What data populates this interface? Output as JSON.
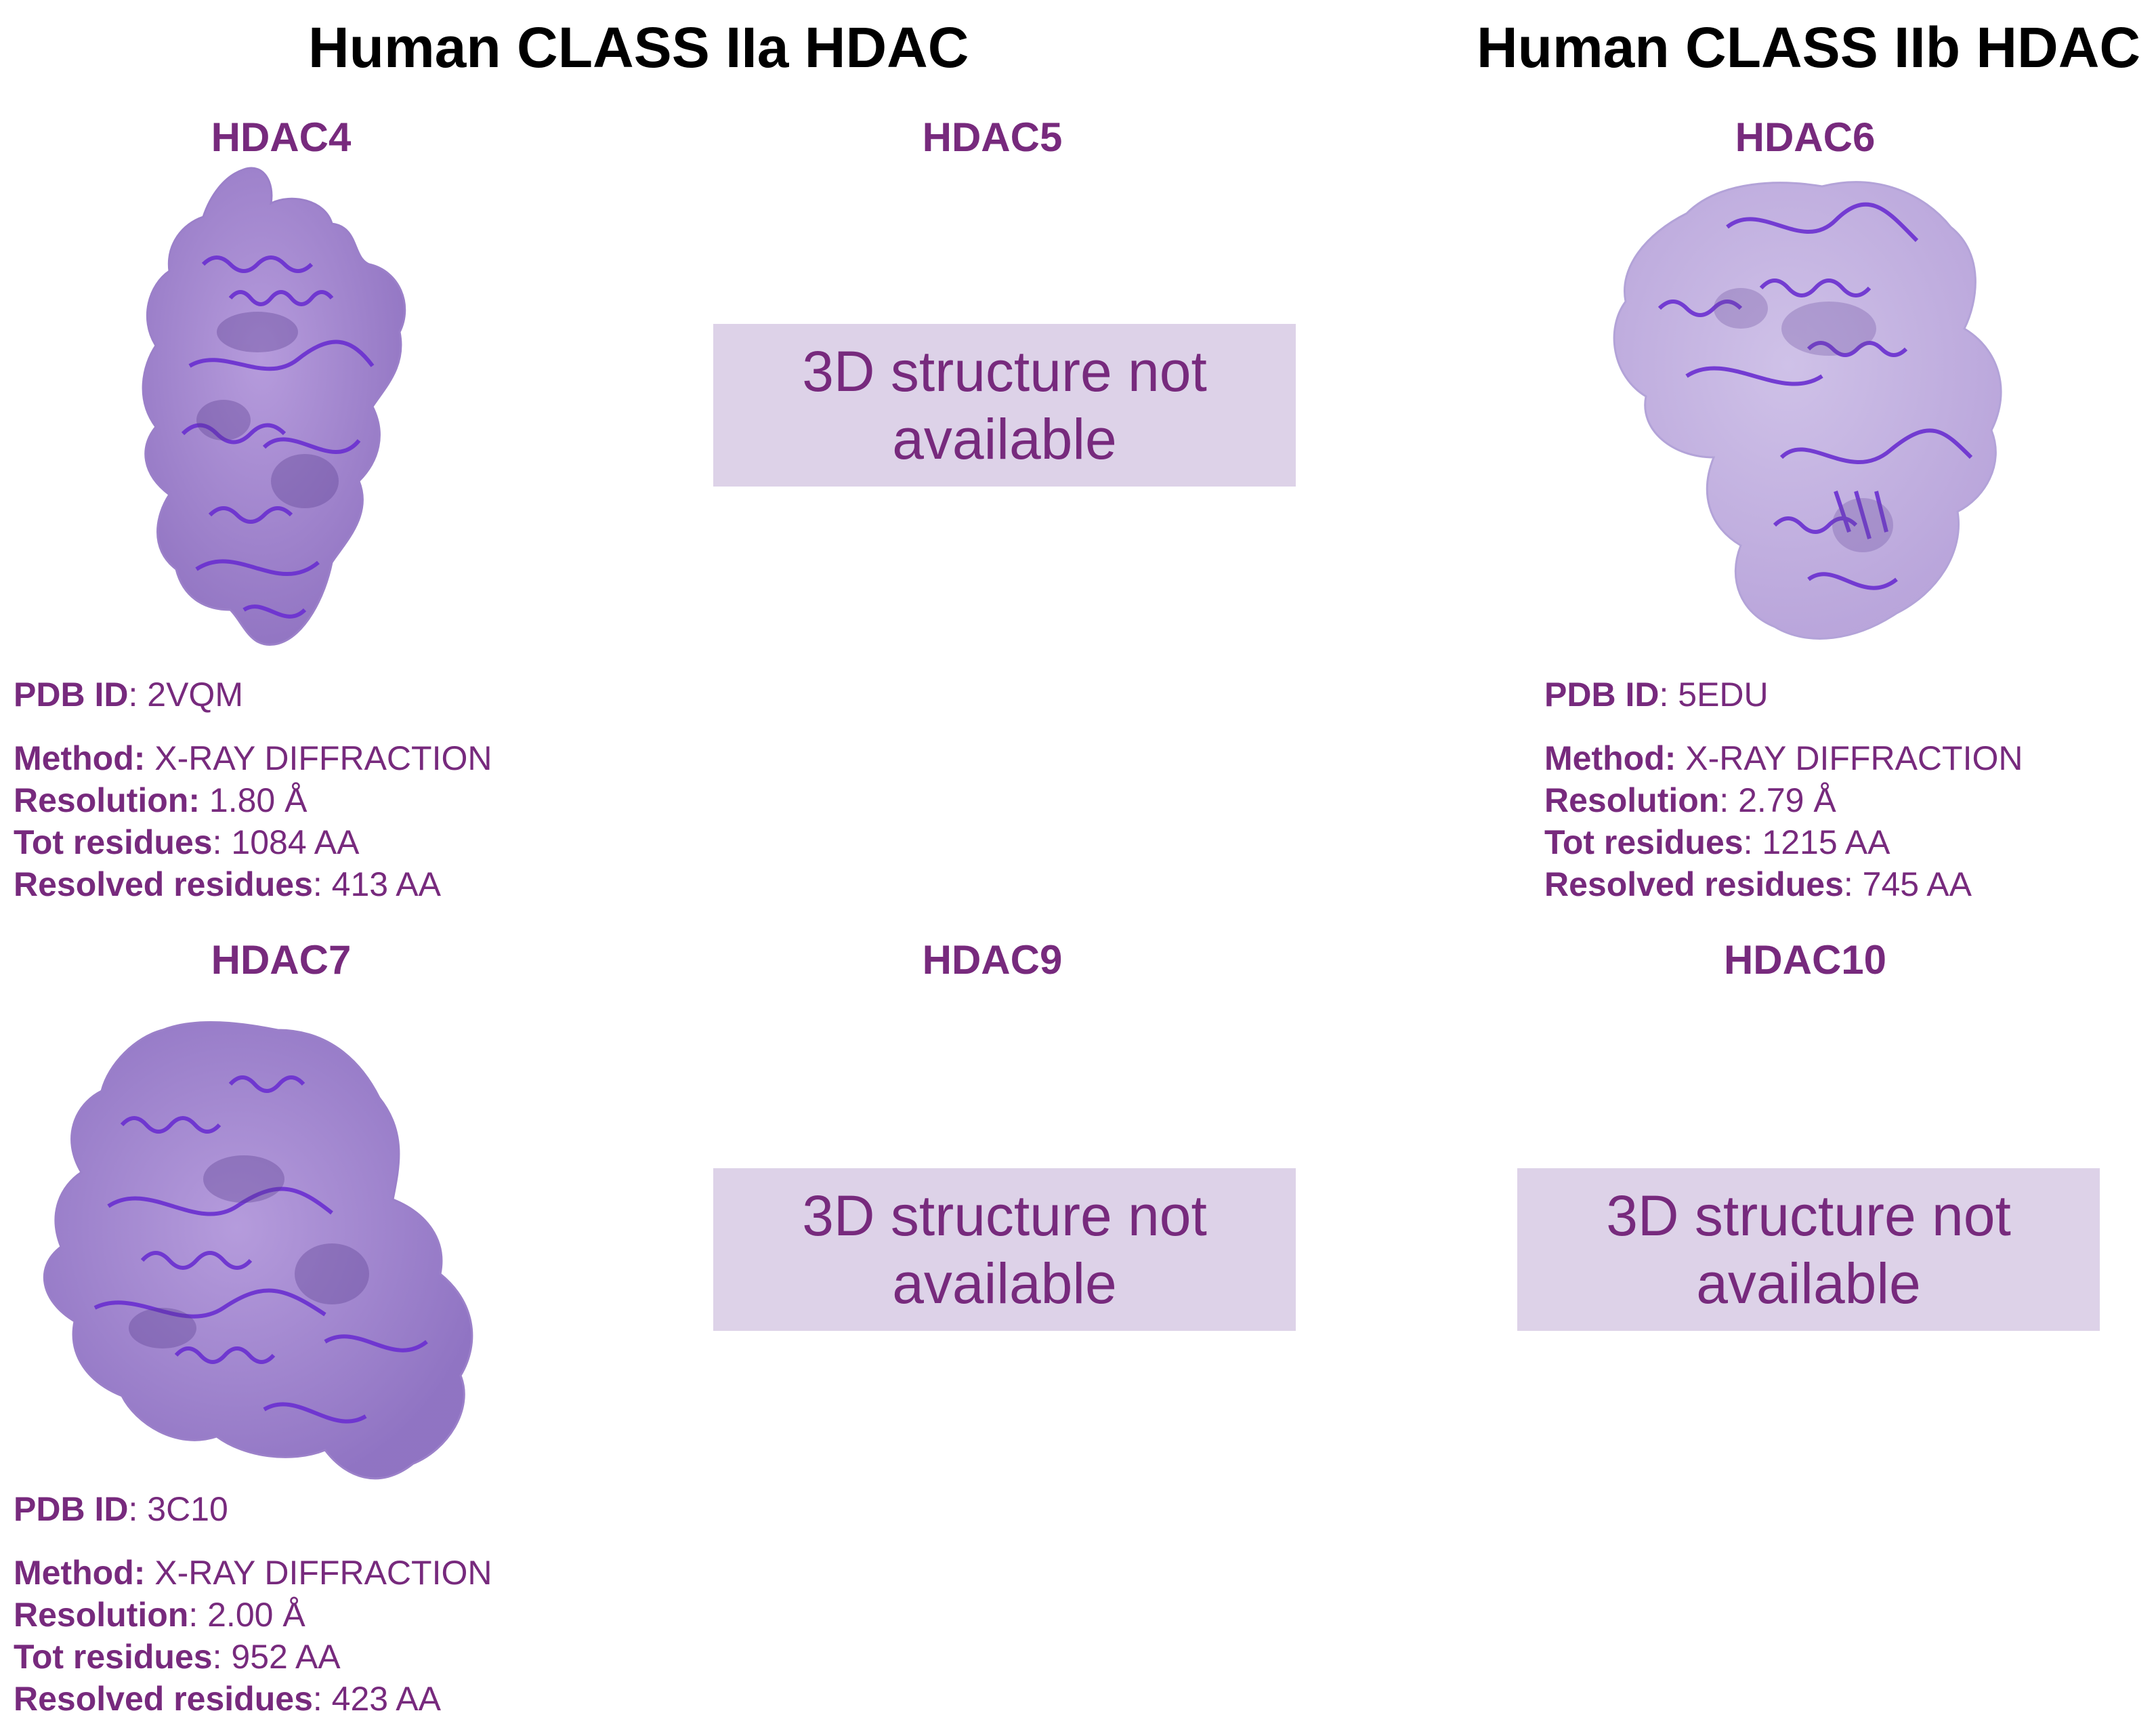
{
  "titles": {
    "class_iia": "Human CLASS IIa HDAC",
    "class_iib": "Human CLASS IIb HDAC"
  },
  "colors": {
    "accent": "#772a7d",
    "box_fill": "#ddd2e8",
    "protein_surface": "#8e6dc4",
    "protein_ribbon": "#7b3fd6"
  },
  "not_available_text": "3D structure not available",
  "panels": {
    "hdac4": {
      "name": "HDAC4",
      "pdb_label": "PDB ID",
      "pdb_id": "2VQM",
      "method_label": "Method:",
      "method": "X-RAY DIFFRACTION",
      "resolution_label": "Resolution:",
      "resolution": "1.80 Å",
      "tot_label": "Tot residues",
      "tot": "1084 AA",
      "resolved_label": "Resolved residues",
      "resolved": "413 AA"
    },
    "hdac5": {
      "name": "HDAC5"
    },
    "hdac6": {
      "name": "HDAC6",
      "pdb_label": "PDB ID",
      "pdb_id": "5EDU",
      "method_label": "Method:",
      "method": "X-RAY DIFFRACTION",
      "resolution_label": "Resolution",
      "resolution": "2.79 Å",
      "tot_label": "Tot residues",
      "tot": "1215 AA",
      "resolved_label": "Resolved residues",
      "resolved": "745 AA"
    },
    "hdac7": {
      "name": "HDAC7",
      "pdb_label": "PDB ID",
      "pdb_id": "3C10",
      "method_label": "Method:",
      "method": "X-RAY DIFFRACTION",
      "resolution_label": "Resolution",
      "resolution": "2.00 Å",
      "tot_label": "Tot residues",
      "tot": "952 AA",
      "resolved_label": "Resolved residues",
      "resolved": "423 AA"
    },
    "hdac9": {
      "name": "HDAC9"
    },
    "hdac10": {
      "name": "HDAC10"
    }
  }
}
